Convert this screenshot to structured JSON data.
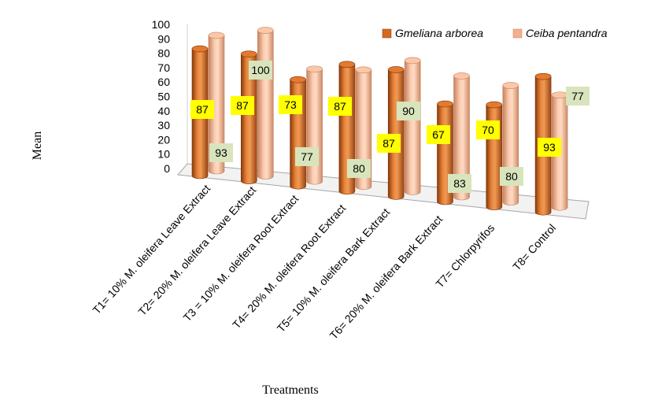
{
  "chart_data": {
    "type": "bar",
    "style": "3d-clustered-cylinder",
    "categories": [
      "T1= 10% M. oleifera Leave Extract",
      "T2= 20% M. oleifera Leave Extract",
      "T3 = 10% M. oleifera Root Extract",
      "T4= 20% M. oleifera Root Extract",
      "T5= 10% M. oleifera Bark Extract",
      "T6= 20% M. oleifera Bark Extract",
      "T7= Chlorpyrifos",
      "T8= Control"
    ],
    "series": [
      {
        "name": "Gmeliana arborea",
        "values": [
          87,
          87,
          73,
          87,
          87,
          67,
          70,
          93
        ],
        "color": "#d4691e"
      },
      {
        "name": "Ceiba pentandra",
        "values": [
          93,
          100,
          77,
          80,
          90,
          83,
          80,
          77
        ],
        "color": "#f4b08a"
      }
    ],
    "xlabel": "Treatments",
    "ylabel": "Mean",
    "ylim": [
      0,
      100
    ],
    "yticks": [
      0,
      10,
      20,
      30,
      40,
      50,
      60,
      70,
      80,
      90,
      100
    ],
    "legend_position": "top-right",
    "grid": false,
    "label_colors": {
      "Gmeliana arborea": "#ffff00",
      "Ceiba pentandra": "#d8e4bc"
    }
  }
}
